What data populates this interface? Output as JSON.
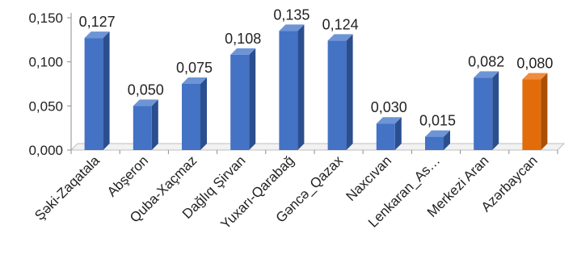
{
  "chart_data": {
    "type": "bar",
    "categories": [
      "Şəki-Zaqatala",
      "Abşeron",
      "Quba-Xaçmaz",
      "Dağlıq Şirvan",
      "Yuxarı-Qarabağ",
      "Gəncə_Qazax",
      "Naxcıvan",
      "Lenkaran_As…",
      "Merkezi Aran",
      "Azərbaycan"
    ],
    "values": [
      0.127,
      0.05,
      0.075,
      0.108,
      0.135,
      0.124,
      0.03,
      0.015,
      0.082,
      0.08
    ],
    "data_labels": [
      "0,127",
      "0,050",
      "0,075",
      "0,108",
      "0,135",
      "0,124",
      "0,030",
      "0,015",
      "0,082",
      "0,080"
    ],
    "yticks": [
      0,
      0.05,
      0.1,
      0.15
    ],
    "ytick_labels": [
      "0,000",
      "0,050",
      "0,100",
      "0,150"
    ],
    "ylim": [
      0,
      0.15
    ],
    "grid": false,
    "legend": "none",
    "colors": {
      "bar": "#4472c4",
      "bar_side": "#2b4f8e",
      "bar_top": "#6d95d6",
      "highlight": "#e36c0a",
      "highlight_side": "#a94f06",
      "highlight_top": "#f08c3c",
      "highlight_index": 9
    }
  }
}
